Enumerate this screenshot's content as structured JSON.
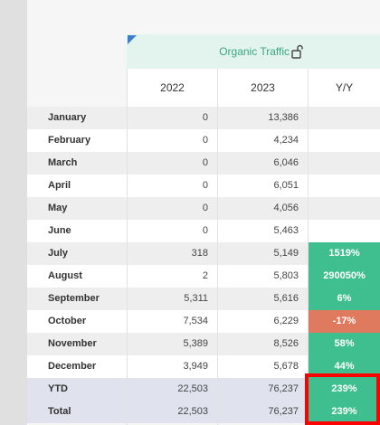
{
  "header": {
    "title": "Organic Traffic",
    "lock_icon": "unlock-icon"
  },
  "columns": [
    "2022",
    "2023",
    "Y/Y"
  ],
  "colors": {
    "positive": "#3fbf8f",
    "negative": "#e07a5f",
    "highlight": "#ff0000"
  },
  "rows": [
    {
      "label": "January",
      "v2022": "0",
      "v2023": "13,386",
      "yy": "",
      "yy_type": "none"
    },
    {
      "label": "February",
      "v2022": "0",
      "v2023": "4,234",
      "yy": "",
      "yy_type": "none"
    },
    {
      "label": "March",
      "v2022": "0",
      "v2023": "6,046",
      "yy": "",
      "yy_type": "none"
    },
    {
      "label": "April",
      "v2022": "0",
      "v2023": "6,051",
      "yy": "",
      "yy_type": "none"
    },
    {
      "label": "May",
      "v2022": "0",
      "v2023": "4,056",
      "yy": "",
      "yy_type": "none"
    },
    {
      "label": "June",
      "v2022": "0",
      "v2023": "5,463",
      "yy": "",
      "yy_type": "none"
    },
    {
      "label": "July",
      "v2022": "318",
      "v2023": "5,149",
      "yy": "1519%",
      "yy_type": "positive"
    },
    {
      "label": "August",
      "v2022": "2",
      "v2023": "5,803",
      "yy": "290050%",
      "yy_type": "positive"
    },
    {
      "label": "September",
      "v2022": "5,311",
      "v2023": "5,616",
      "yy": "6%",
      "yy_type": "positive"
    },
    {
      "label": "October",
      "v2022": "7,534",
      "v2023": "6,229",
      "yy": "-17%",
      "yy_type": "negative"
    },
    {
      "label": "November",
      "v2022": "5,389",
      "v2023": "8,526",
      "yy": "58%",
      "yy_type": "positive"
    },
    {
      "label": "December",
      "v2022": "3,949",
      "v2023": "5,678",
      "yy": "44%",
      "yy_type": "positive"
    },
    {
      "label": "YTD",
      "v2022": "22,503",
      "v2023": "76,237",
      "yy": "239%",
      "yy_type": "positive"
    },
    {
      "label": "Total",
      "v2022": "22,503",
      "v2023": "76,237",
      "yy": "239%",
      "yy_type": "positive"
    }
  ]
}
